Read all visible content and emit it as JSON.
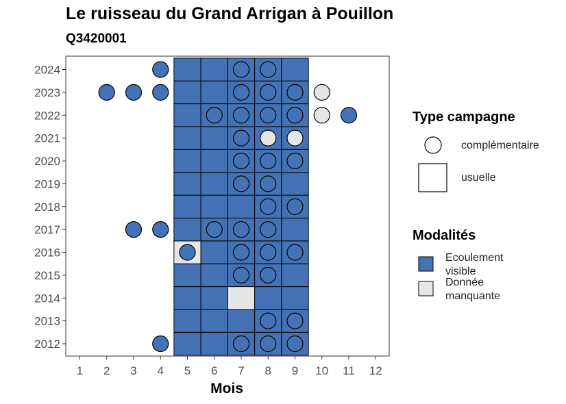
{
  "chart_data": {
    "type": "heatmap",
    "title": "Le ruisseau du Grand Arrigan à Pouillon",
    "subtitle": "Q3420001",
    "xlabel": "Mois",
    "ylabel": "",
    "x_ticks": [
      "1",
      "2",
      "3",
      "4",
      "5",
      "6",
      "7",
      "8",
      "9",
      "10",
      "11",
      "12"
    ],
    "y_ticks": [
      "2012",
      "2013",
      "2014",
      "2015",
      "2016",
      "2017",
      "2018",
      "2019",
      "2020",
      "2021",
      "2022",
      "2023",
      "2024"
    ],
    "colors": {
      "visible": "#4472b4",
      "missing": "#e6e6e6"
    },
    "legend_type": {
      "title": "Type campagne",
      "items": [
        {
          "key": "complementaire",
          "label": "complémentaire",
          "shape": "circle"
        },
        {
          "key": "usuelle",
          "label": "usuelle",
          "shape": "square"
        }
      ]
    },
    "legend_modalite": {
      "title": "Modalités",
      "items": [
        {
          "key": "visible",
          "label_lines": [
            "Ecoulement",
            "visible"
          ]
        },
        {
          "key": "missing",
          "label_lines": [
            "Donnée",
            "manquante"
          ]
        }
      ]
    },
    "usuelle": [
      {
        "year": "2012",
        "month": 5,
        "mod": "visible"
      },
      {
        "year": "2012",
        "month": 6,
        "mod": "visible"
      },
      {
        "year": "2012",
        "month": 7,
        "mod": "visible"
      },
      {
        "year": "2012",
        "month": 8,
        "mod": "visible"
      },
      {
        "year": "2012",
        "month": 9,
        "mod": "visible"
      },
      {
        "year": "2013",
        "month": 5,
        "mod": "visible"
      },
      {
        "year": "2013",
        "month": 6,
        "mod": "visible"
      },
      {
        "year": "2013",
        "month": 7,
        "mod": "visible"
      },
      {
        "year": "2013",
        "month": 8,
        "mod": "visible"
      },
      {
        "year": "2013",
        "month": 9,
        "mod": "visible"
      },
      {
        "year": "2014",
        "month": 5,
        "mod": "visible"
      },
      {
        "year": "2014",
        "month": 6,
        "mod": "visible"
      },
      {
        "year": "2014",
        "month": 7,
        "mod": "missing"
      },
      {
        "year": "2014",
        "month": 8,
        "mod": "visible"
      },
      {
        "year": "2014",
        "month": 9,
        "mod": "visible"
      },
      {
        "year": "2015",
        "month": 5,
        "mod": "visible"
      },
      {
        "year": "2015",
        "month": 6,
        "mod": "visible"
      },
      {
        "year": "2015",
        "month": 7,
        "mod": "visible"
      },
      {
        "year": "2015",
        "month": 8,
        "mod": "visible"
      },
      {
        "year": "2015",
        "month": 9,
        "mod": "visible"
      },
      {
        "year": "2016",
        "month": 5,
        "mod": "missing"
      },
      {
        "year": "2016",
        "month": 6,
        "mod": "visible"
      },
      {
        "year": "2016",
        "month": 7,
        "mod": "visible"
      },
      {
        "year": "2016",
        "month": 8,
        "mod": "visible"
      },
      {
        "year": "2016",
        "month": 9,
        "mod": "visible"
      },
      {
        "year": "2017",
        "month": 5,
        "mod": "visible"
      },
      {
        "year": "2017",
        "month": 6,
        "mod": "visible"
      },
      {
        "year": "2017",
        "month": 7,
        "mod": "visible"
      },
      {
        "year": "2017",
        "month": 8,
        "mod": "visible"
      },
      {
        "year": "2017",
        "month": 9,
        "mod": "visible"
      },
      {
        "year": "2018",
        "month": 5,
        "mod": "visible"
      },
      {
        "year": "2018",
        "month": 6,
        "mod": "visible"
      },
      {
        "year": "2018",
        "month": 7,
        "mod": "visible"
      },
      {
        "year": "2018",
        "month": 8,
        "mod": "visible"
      },
      {
        "year": "2018",
        "month": 9,
        "mod": "visible"
      },
      {
        "year": "2019",
        "month": 5,
        "mod": "visible"
      },
      {
        "year": "2019",
        "month": 6,
        "mod": "visible"
      },
      {
        "year": "2019",
        "month": 7,
        "mod": "visible"
      },
      {
        "year": "2019",
        "month": 8,
        "mod": "visible"
      },
      {
        "year": "2019",
        "month": 9,
        "mod": "visible"
      },
      {
        "year": "2020",
        "month": 5,
        "mod": "visible"
      },
      {
        "year": "2020",
        "month": 6,
        "mod": "visible"
      },
      {
        "year": "2020",
        "month": 7,
        "mod": "visible"
      },
      {
        "year": "2020",
        "month": 8,
        "mod": "visible"
      },
      {
        "year": "2020",
        "month": 9,
        "mod": "visible"
      },
      {
        "year": "2021",
        "month": 5,
        "mod": "visible"
      },
      {
        "year": "2021",
        "month": 6,
        "mod": "visible"
      },
      {
        "year": "2021",
        "month": 7,
        "mod": "visible"
      },
      {
        "year": "2021",
        "month": 8,
        "mod": "visible"
      },
      {
        "year": "2021",
        "month": 9,
        "mod": "visible"
      },
      {
        "year": "2022",
        "month": 5,
        "mod": "visible"
      },
      {
        "year": "2022",
        "month": 6,
        "mod": "visible"
      },
      {
        "year": "2022",
        "month": 7,
        "mod": "visible"
      },
      {
        "year": "2022",
        "month": 8,
        "mod": "visible"
      },
      {
        "year": "2022",
        "month": 9,
        "mod": "visible"
      },
      {
        "year": "2023",
        "month": 5,
        "mod": "visible"
      },
      {
        "year": "2023",
        "month": 6,
        "mod": "visible"
      },
      {
        "year": "2023",
        "month": 7,
        "mod": "visible"
      },
      {
        "year": "2023",
        "month": 8,
        "mod": "visible"
      },
      {
        "year": "2023",
        "month": 9,
        "mod": "visible"
      },
      {
        "year": "2024",
        "month": 5,
        "mod": "visible"
      },
      {
        "year": "2024",
        "month": 6,
        "mod": "visible"
      },
      {
        "year": "2024",
        "month": 7,
        "mod": "visible"
      },
      {
        "year": "2024",
        "month": 8,
        "mod": "visible"
      },
      {
        "year": "2024",
        "month": 9,
        "mod": "visible"
      }
    ],
    "complementaire": [
      {
        "year": "2012",
        "month": 4,
        "mod": "visible"
      },
      {
        "year": "2012",
        "month": 7,
        "mod": "visible"
      },
      {
        "year": "2012",
        "month": 8,
        "mod": "visible"
      },
      {
        "year": "2012",
        "month": 9,
        "mod": "visible"
      },
      {
        "year": "2013",
        "month": 8,
        "mod": "visible"
      },
      {
        "year": "2013",
        "month": 9,
        "mod": "visible"
      },
      {
        "year": "2015",
        "month": 7,
        "mod": "visible"
      },
      {
        "year": "2015",
        "month": 8,
        "mod": "visible"
      },
      {
        "year": "2016",
        "month": 5,
        "mod": "visible"
      },
      {
        "year": "2016",
        "month": 7,
        "mod": "visible"
      },
      {
        "year": "2016",
        "month": 8,
        "mod": "visible"
      },
      {
        "year": "2016",
        "month": 9,
        "mod": "visible"
      },
      {
        "year": "2017",
        "month": 3,
        "mod": "visible"
      },
      {
        "year": "2017",
        "month": 4,
        "mod": "visible"
      },
      {
        "year": "2017",
        "month": 6,
        "mod": "visible"
      },
      {
        "year": "2017",
        "month": 7,
        "mod": "visible"
      },
      {
        "year": "2017",
        "month": 8,
        "mod": "visible"
      },
      {
        "year": "2018",
        "month": 8,
        "mod": "visible"
      },
      {
        "year": "2018",
        "month": 9,
        "mod": "visible"
      },
      {
        "year": "2019",
        "month": 7,
        "mod": "visible"
      },
      {
        "year": "2019",
        "month": 8,
        "mod": "visible"
      },
      {
        "year": "2020",
        "month": 7,
        "mod": "visible"
      },
      {
        "year": "2020",
        "month": 8,
        "mod": "visible"
      },
      {
        "year": "2020",
        "month": 9,
        "mod": "visible"
      },
      {
        "year": "2021",
        "month": 7,
        "mod": "visible"
      },
      {
        "year": "2021",
        "month": 8,
        "mod": "missing"
      },
      {
        "year": "2021",
        "month": 9,
        "mod": "missing"
      },
      {
        "year": "2022",
        "month": 6,
        "mod": "visible"
      },
      {
        "year": "2022",
        "month": 7,
        "mod": "visible"
      },
      {
        "year": "2022",
        "month": 8,
        "mod": "visible"
      },
      {
        "year": "2022",
        "month": 9,
        "mod": "visible"
      },
      {
        "year": "2022",
        "month": 10,
        "mod": "missing"
      },
      {
        "year": "2022",
        "month": 11,
        "mod": "visible"
      },
      {
        "year": "2023",
        "month": 2,
        "mod": "visible"
      },
      {
        "year": "2023",
        "month": 3,
        "mod": "visible"
      },
      {
        "year": "2023",
        "month": 4,
        "mod": "visible"
      },
      {
        "year": "2023",
        "month": 7,
        "mod": "visible"
      },
      {
        "year": "2023",
        "month": 8,
        "mod": "visible"
      },
      {
        "year": "2023",
        "month": 9,
        "mod": "visible"
      },
      {
        "year": "2023",
        "month": 10,
        "mod": "missing"
      },
      {
        "year": "2024",
        "month": 4,
        "mod": "visible"
      },
      {
        "year": "2024",
        "month": 7,
        "mod": "visible"
      },
      {
        "year": "2024",
        "month": 8,
        "mod": "visible"
      }
    ]
  }
}
